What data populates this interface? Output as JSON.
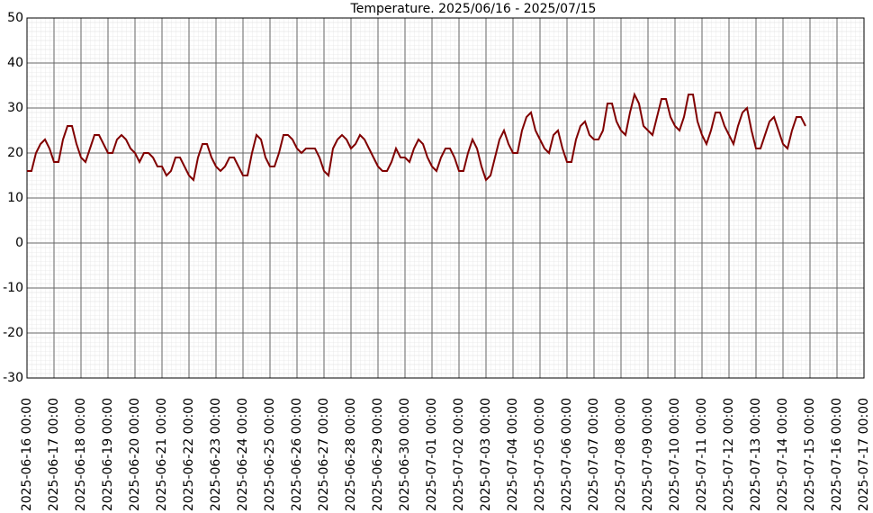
{
  "chart_data": {
    "type": "line",
    "title": "Temperature. 2025/06/16 - 2025/07/15",
    "color": "#800000",
    "grid": true,
    "xlim": [
      "2025-06-16 00:00",
      "2025-07-17 00:00"
    ],
    "xticks": [
      "2025-06-16 00:00",
      "2025-06-17 00:00",
      "2025-06-18 00:00",
      "2025-06-19 00:00",
      "2025-06-20 00:00",
      "2025-06-21 00:00",
      "2025-06-22 00:00",
      "2025-06-23 00:00",
      "2025-06-24 00:00",
      "2025-06-25 00:00",
      "2025-06-26 00:00",
      "2025-06-27 00:00",
      "2025-06-28 00:00",
      "2025-06-29 00:00",
      "2025-06-30 00:00",
      "2025-07-01 00:00",
      "2025-07-02 00:00",
      "2025-07-03 00:00",
      "2025-07-04 00:00",
      "2025-07-05 00:00",
      "2025-07-06 00:00",
      "2025-07-07 00:00",
      "2025-07-08 00:00",
      "2025-07-09 00:00",
      "2025-07-10 00:00",
      "2025-07-11 00:00",
      "2025-07-12 00:00",
      "2025-07-13 00:00",
      "2025-07-14 00:00",
      "2025-07-15 00:00",
      "2025-07-16 00:00",
      "2025-07-17 00:00"
    ],
    "ylim": [
      -30,
      50
    ],
    "yticks": [
      -30,
      -20,
      -10,
      0,
      10,
      20,
      30,
      40,
      50
    ],
    "x": [
      "2025-06-16 00:00",
      "2025-06-16 04:00",
      "2025-06-16 08:00",
      "2025-06-16 12:00",
      "2025-06-16 16:00",
      "2025-06-16 20:00",
      "2025-06-17 00:00",
      "2025-06-17 04:00",
      "2025-06-17 08:00",
      "2025-06-17 12:00",
      "2025-06-17 16:00",
      "2025-06-17 20:00",
      "2025-06-18 00:00",
      "2025-06-18 04:00",
      "2025-06-18 08:00",
      "2025-06-18 12:00",
      "2025-06-18 16:00",
      "2025-06-18 20:00",
      "2025-06-19 00:00",
      "2025-06-19 04:00",
      "2025-06-19 08:00",
      "2025-06-19 12:00",
      "2025-06-19 16:00",
      "2025-06-19 20:00",
      "2025-06-20 00:00",
      "2025-06-20 04:00",
      "2025-06-20 08:00",
      "2025-06-20 12:00",
      "2025-06-20 16:00",
      "2025-06-20 20:00",
      "2025-06-21 00:00",
      "2025-06-21 04:00",
      "2025-06-21 08:00",
      "2025-06-21 12:00",
      "2025-06-21 16:00",
      "2025-06-21 20:00",
      "2025-06-22 00:00",
      "2025-06-22 04:00",
      "2025-06-22 08:00",
      "2025-06-22 12:00",
      "2025-06-22 16:00",
      "2025-06-22 20:00",
      "2025-06-23 00:00",
      "2025-06-23 04:00",
      "2025-06-23 08:00",
      "2025-06-23 12:00",
      "2025-06-23 16:00",
      "2025-06-23 20:00",
      "2025-06-24 00:00",
      "2025-06-24 04:00",
      "2025-06-24 08:00",
      "2025-06-24 12:00",
      "2025-06-24 16:00",
      "2025-06-24 20:00",
      "2025-06-25 00:00",
      "2025-06-25 04:00",
      "2025-06-25 08:00",
      "2025-06-25 12:00",
      "2025-06-25 16:00",
      "2025-06-25 20:00",
      "2025-06-26 00:00",
      "2025-06-26 04:00",
      "2025-06-26 08:00",
      "2025-06-26 12:00",
      "2025-06-26 16:00",
      "2025-06-26 20:00",
      "2025-06-27 00:00",
      "2025-06-27 04:00",
      "2025-06-27 08:00",
      "2025-06-27 12:00",
      "2025-06-27 16:00",
      "2025-06-27 20:00",
      "2025-06-28 00:00",
      "2025-06-28 04:00",
      "2025-06-28 08:00",
      "2025-06-28 12:00",
      "2025-06-28 16:00",
      "2025-06-28 20:00",
      "2025-06-29 00:00",
      "2025-06-29 04:00",
      "2025-06-29 08:00",
      "2025-06-29 12:00",
      "2025-06-29 16:00",
      "2025-06-29 20:00",
      "2025-06-30 00:00",
      "2025-06-30 04:00",
      "2025-06-30 08:00",
      "2025-06-30 12:00",
      "2025-06-30 16:00",
      "2025-06-30 20:00",
      "2025-07-01 00:00",
      "2025-07-01 04:00",
      "2025-07-01 08:00",
      "2025-07-01 12:00",
      "2025-07-01 16:00",
      "2025-07-01 20:00",
      "2025-07-02 00:00",
      "2025-07-02 04:00",
      "2025-07-02 08:00",
      "2025-07-02 12:00",
      "2025-07-02 16:00",
      "2025-07-02 20:00",
      "2025-07-03 00:00",
      "2025-07-03 04:00",
      "2025-07-03 08:00",
      "2025-07-03 12:00",
      "2025-07-03 16:00",
      "2025-07-03 20:00",
      "2025-07-04 00:00",
      "2025-07-04 04:00",
      "2025-07-04 08:00",
      "2025-07-04 12:00",
      "2025-07-04 16:00",
      "2025-07-04 20:00",
      "2025-07-05 00:00",
      "2025-07-05 04:00",
      "2025-07-05 08:00",
      "2025-07-05 12:00",
      "2025-07-05 16:00",
      "2025-07-05 20:00",
      "2025-07-06 00:00",
      "2025-07-06 04:00",
      "2025-07-06 08:00",
      "2025-07-06 12:00",
      "2025-07-06 16:00",
      "2025-07-06 20:00",
      "2025-07-07 00:00",
      "2025-07-07 04:00",
      "2025-07-07 08:00",
      "2025-07-07 12:00",
      "2025-07-07 16:00",
      "2025-07-07 20:00",
      "2025-07-08 00:00",
      "2025-07-08 04:00",
      "2025-07-08 08:00",
      "2025-07-08 12:00",
      "2025-07-08 16:00",
      "2025-07-08 20:00",
      "2025-07-09 00:00",
      "2025-07-09 04:00",
      "2025-07-09 08:00",
      "2025-07-09 12:00",
      "2025-07-09 16:00",
      "2025-07-09 20:00",
      "2025-07-10 00:00",
      "2025-07-10 04:00",
      "2025-07-10 08:00",
      "2025-07-10 12:00",
      "2025-07-10 16:00",
      "2025-07-10 20:00",
      "2025-07-11 00:00",
      "2025-07-11 04:00",
      "2025-07-11 08:00",
      "2025-07-11 12:00",
      "2025-07-11 16:00",
      "2025-07-11 20:00",
      "2025-07-12 00:00",
      "2025-07-12 04:00",
      "2025-07-12 08:00",
      "2025-07-12 12:00",
      "2025-07-12 16:00",
      "2025-07-12 20:00",
      "2025-07-13 00:00",
      "2025-07-13 04:00",
      "2025-07-13 08:00",
      "2025-07-13 12:00",
      "2025-07-13 16:00",
      "2025-07-13 20:00",
      "2025-07-14 00:00",
      "2025-07-14 04:00",
      "2025-07-14 08:00",
      "2025-07-14 12:00",
      "2025-07-14 16:00",
      "2025-07-14 20:00"
    ],
    "values": [
      16,
      16,
      20,
      22,
      23,
      21,
      18,
      18,
      23,
      26,
      26,
      22,
      19,
      18,
      21,
      24,
      24,
      22,
      20,
      20,
      23,
      24,
      23,
      21,
      20,
      18,
      20,
      20,
      19,
      17,
      17,
      15,
      16,
      19,
      19,
      17,
      15,
      14,
      19,
      22,
      22,
      19,
      17,
      16,
      17,
      19,
      19,
      17,
      15,
      15,
      20,
      24,
      23,
      19,
      17,
      17,
      20,
      24,
      24,
      23,
      21,
      20,
      21,
      21,
      21,
      19,
      16,
      15,
      21,
      23,
      24,
      23,
      21,
      22,
      24,
      23,
      21,
      19,
      17,
      16,
      16,
      18,
      21,
      19,
      19,
      18,
      21,
      23,
      22,
      19,
      17,
      16,
      19,
      21,
      21,
      19,
      16,
      16,
      20,
      23,
      21,
      17,
      14,
      15,
      19,
      23,
      25,
      22,
      20,
      20,
      25,
      28,
      29,
      25,
      23,
      21,
      20,
      24,
      25,
      21,
      18,
      18,
      23,
      26,
      27,
      24,
      23,
      23,
      25,
      31,
      31,
      27,
      25,
      24,
      29,
      33,
      31,
      26,
      25,
      24,
      28,
      32,
      32,
      28,
      26,
      25,
      28,
      33,
      33,
      27,
      24,
      22,
      25,
      29,
      29,
      26,
      24,
      22,
      26,
      29,
      30,
      25,
      21,
      21,
      24,
      27,
      28,
      25,
      22,
      21,
      25,
      28,
      28,
      26
    ]
  }
}
